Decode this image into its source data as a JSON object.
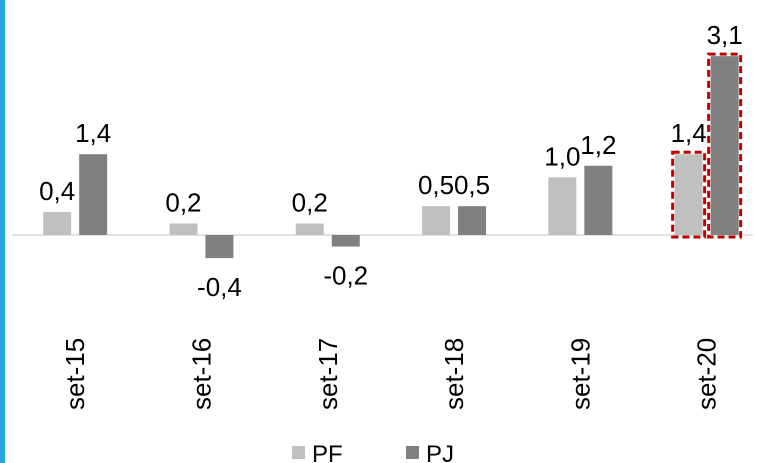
{
  "chart_data": {
    "type": "bar",
    "categories": [
      "set-15",
      "set-16",
      "set-17",
      "set-18",
      "set-19",
      "set-20"
    ],
    "series": [
      {
        "name": "PF",
        "color": "#c0c0c0",
        "values": [
          0.4,
          0.2,
          0.2,
          0.5,
          1.0,
          1.4
        ],
        "labels": [
          "0,4",
          "0,2",
          "0,2",
          "0,5",
          "1,0",
          "1,4"
        ]
      },
      {
        "name": "PJ",
        "color": "#808080",
        "values": [
          1.4,
          -0.4,
          -0.2,
          0.5,
          1.2,
          3.1
        ],
        "labels": [
          "1,4",
          "-0,4",
          "-0,2",
          "0,5",
          "1,2",
          "3,1"
        ]
      }
    ],
    "highlight": {
      "category": "set-20",
      "style": "dashed red box",
      "color": "#c00000"
    },
    "legend_position": "bottom",
    "grid": false,
    "ylim": [
      -0.7,
      3.3
    ]
  }
}
